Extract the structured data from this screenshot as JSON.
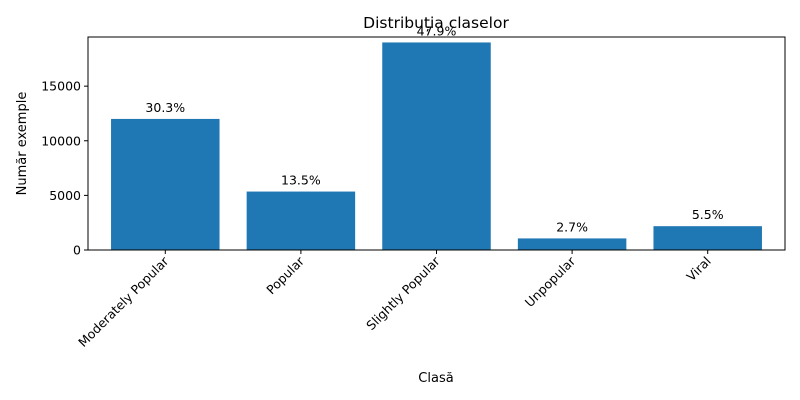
{
  "chart_data": {
    "type": "bar",
    "title": "Distribuția claselor",
    "xlabel": "Clasă",
    "ylabel": "Număr exemple",
    "categories": [
      "Moderately Popular",
      "Popular",
      "Slightly Popular",
      "Unpopular",
      "Viral"
    ],
    "values": [
      12000,
      5350,
      19000,
      1060,
      2180
    ],
    "bar_labels": [
      "30.3%",
      "13.5%",
      "47.9%",
      "2.7%",
      "5.5%"
    ],
    "ylim": [
      0,
      19500
    ],
    "yticks": [
      0,
      5000,
      10000,
      15000
    ],
    "ytick_labels": [
      "0",
      "5000",
      "10000",
      "15000"
    ],
    "grid": false,
    "bar_color": "#1f77b4"
  }
}
